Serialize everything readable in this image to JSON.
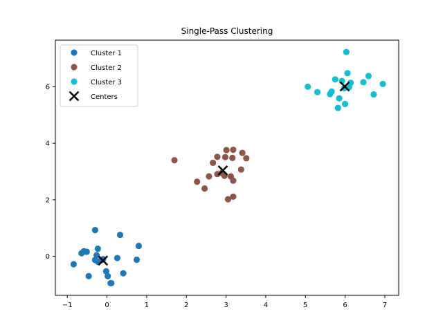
{
  "chart_data": {
    "type": "scatter",
    "title": "Single-Pass Clustering",
    "xlabel": "",
    "ylabel": "",
    "xlim": [
      -1.3,
      7.35
    ],
    "ylim": [
      -1.38,
      7.65
    ],
    "xticks": [
      -1,
      0,
      1,
      2,
      3,
      4,
      5,
      6,
      7
    ],
    "yticks": [
      0,
      2,
      4,
      6
    ],
    "grid": false,
    "legend_position": "top-left",
    "series": [
      {
        "name": "Cluster 1",
        "color": "#1f77b4",
        "marker": "circle",
        "points": [
          [
            -0.84,
            -0.28
          ],
          [
            -0.64,
            0.11
          ],
          [
            -0.58,
            0.18
          ],
          [
            -0.51,
            0.16
          ],
          [
            -0.46,
            -0.7
          ],
          [
            -0.3,
            0.93
          ],
          [
            -0.3,
            -0.13
          ],
          [
            -0.26,
            0.04
          ],
          [
            -0.23,
            0.27
          ],
          [
            -0.22,
            -0.2
          ],
          [
            -0.15,
            -0.14
          ],
          [
            -0.1,
            -0.1
          ],
          [
            -0.02,
            -0.53
          ],
          [
            0.02,
            -0.7
          ],
          [
            0.09,
            -0.95
          ],
          [
            0.11,
            -0.95
          ],
          [
            0.26,
            -0.06
          ],
          [
            0.33,
            0.76
          ],
          [
            0.41,
            -0.6
          ],
          [
            0.75,
            -0.12
          ],
          [
            0.8,
            0.37
          ]
        ]
      },
      {
        "name": "Cluster 2",
        "color": "#8c564b",
        "marker": "circle",
        "points": [
          [
            1.7,
            3.4
          ],
          [
            2.27,
            2.64
          ],
          [
            2.46,
            2.4
          ],
          [
            2.57,
            2.83
          ],
          [
            2.67,
            3.31
          ],
          [
            2.78,
            3.52
          ],
          [
            2.78,
            2.91
          ],
          [
            2.89,
            2.95
          ],
          [
            2.96,
            2.85
          ],
          [
            2.98,
            3.51
          ],
          [
            3.01,
            3.76
          ],
          [
            3.05,
            2.02
          ],
          [
            3.12,
            2.83
          ],
          [
            3.16,
            3.48
          ],
          [
            3.18,
            3.77
          ],
          [
            3.18,
            2.68
          ],
          [
            3.18,
            2.11
          ],
          [
            3.38,
            3.07
          ],
          [
            3.41,
            3.66
          ],
          [
            3.51,
            3.47
          ]
        ]
      },
      {
        "name": "Cluster 3",
        "color": "#17becf",
        "marker": "circle",
        "points": [
          [
            5.06,
            6.0
          ],
          [
            5.3,
            5.81
          ],
          [
            5.62,
            5.74
          ],
          [
            5.66,
            5.83
          ],
          [
            5.75,
            6.26
          ],
          [
            5.82,
            5.25
          ],
          [
            5.85,
            5.59
          ],
          [
            5.92,
            6.2
          ],
          [
            5.98,
            5.95
          ],
          [
            6.0,
            5.39
          ],
          [
            6.03,
            7.23
          ],
          [
            6.06,
            6.48
          ],
          [
            6.1,
            5.99
          ],
          [
            6.14,
            6.14
          ],
          [
            6.46,
            6.16
          ],
          [
            6.59,
            6.38
          ],
          [
            6.72,
            5.73
          ],
          [
            6.95,
            6.1
          ]
        ]
      },
      {
        "name": "Centers",
        "color": "#000000",
        "marker": "x",
        "points": [
          [
            -0.1,
            -0.15
          ],
          [
            2.92,
            3.04
          ],
          [
            5.99,
            6.01
          ]
        ]
      }
    ]
  }
}
